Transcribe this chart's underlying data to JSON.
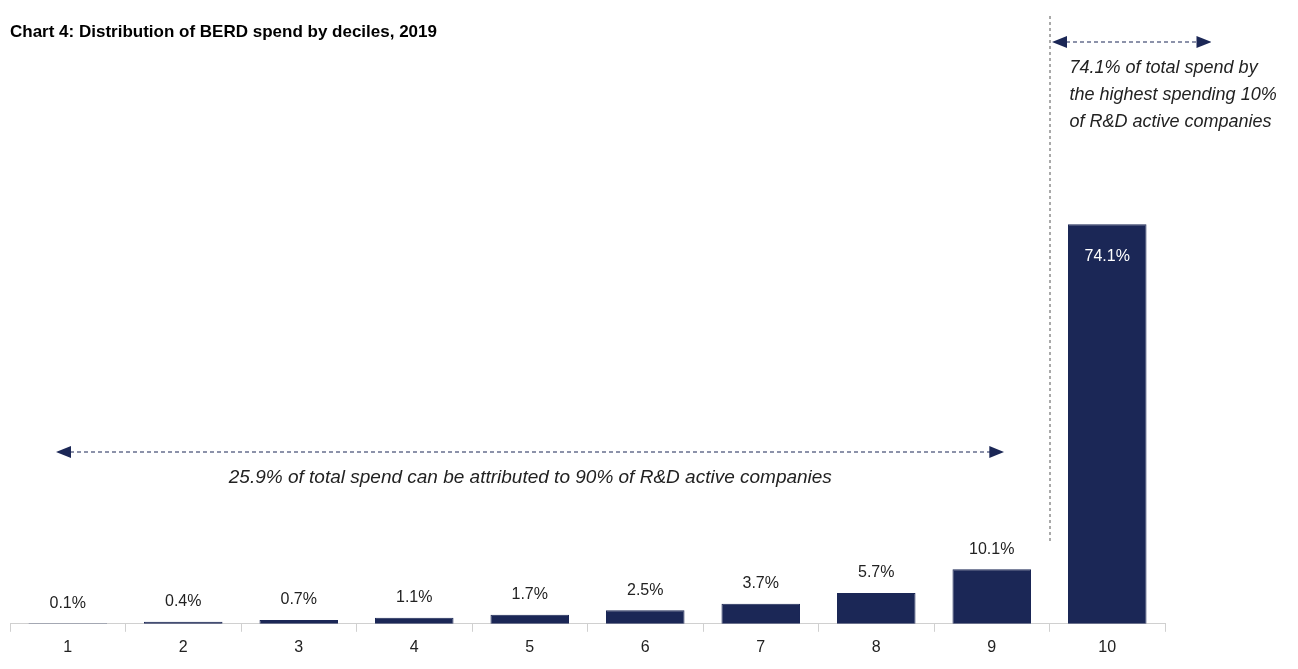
{
  "chart_data": {
    "type": "bar",
    "title": "Chart 4: Distribution of BERD spend by deciles, 2019",
    "categories": [
      "1",
      "2",
      "3",
      "4",
      "5",
      "6",
      "7",
      "8",
      "9",
      "10"
    ],
    "values": [
      0.1,
      0.4,
      0.7,
      1.1,
      1.7,
      2.5,
      3.7,
      5.7,
      10.1,
      74.1
    ],
    "value_labels": [
      "0.1%",
      "0.4%",
      "0.7%",
      "1.1%",
      "1.7%",
      "2.5%",
      "3.7%",
      "5.7%",
      "10.1%",
      "74.1%"
    ],
    "color": "#1b2756",
    "annotations": [
      "25.9% of total spend can be attributed to 90% of R&D active companies",
      "74.1% of total spend by the highest spending 10% of R&D active companies"
    ]
  }
}
